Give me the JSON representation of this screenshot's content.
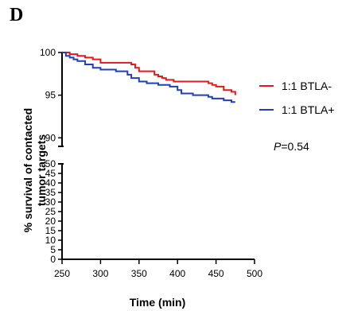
{
  "panel_label": "D",
  "chart_data": {
    "type": "line",
    "title": "",
    "xlabel": "Time (min)",
    "ylabel": "% survival of contacted tumor targets",
    "xlim": [
      250,
      500
    ],
    "xticks": [
      250,
      300,
      350,
      400,
      450,
      500
    ],
    "y_upper_segment": {
      "range": [
        89,
        100
      ],
      "ticks": [
        90,
        95,
        100
      ]
    },
    "y_lower_segment": {
      "range": [
        0,
        50
      ],
      "ticks": [
        0,
        5,
        10,
        15,
        20,
        25,
        30,
        35,
        40,
        45,
        50
      ]
    },
    "y_axis_break": true,
    "step": true,
    "legend_position": "right",
    "series": [
      {
        "name": "1:1 BTLA-",
        "color": "#e31a1c",
        "x": [
          250,
          260,
          270,
          280,
          290,
          300,
          340,
          345,
          350,
          370,
          375,
          380,
          385,
          395,
          440,
          445,
          450,
          460,
          470,
          475
        ],
        "y": [
          100,
          99.8,
          99.6,
          99.4,
          99.2,
          98.8,
          98.6,
          98.2,
          97.8,
          97.4,
          97.2,
          97.0,
          96.8,
          96.6,
          96.4,
          96.2,
          96.0,
          95.6,
          95.4,
          95.0
        ]
      },
      {
        "name": "1:1 BTLA+",
        "color": "#1f3fbf",
        "x": [
          250,
          255,
          260,
          265,
          270,
          280,
          290,
          300,
          320,
          335,
          340,
          350,
          360,
          375,
          390,
          400,
          405,
          420,
          440,
          445,
          460,
          470,
          475
        ],
        "y": [
          100,
          99.6,
          99.4,
          99.2,
          99.0,
          98.6,
          98.2,
          98.0,
          97.8,
          97.4,
          97.0,
          96.6,
          96.4,
          96.2,
          96.0,
          95.6,
          95.2,
          95.0,
          94.8,
          94.6,
          94.4,
          94.2,
          94.2
        ]
      }
    ],
    "annotation": {
      "label": "P",
      "text": "=0.54"
    }
  }
}
